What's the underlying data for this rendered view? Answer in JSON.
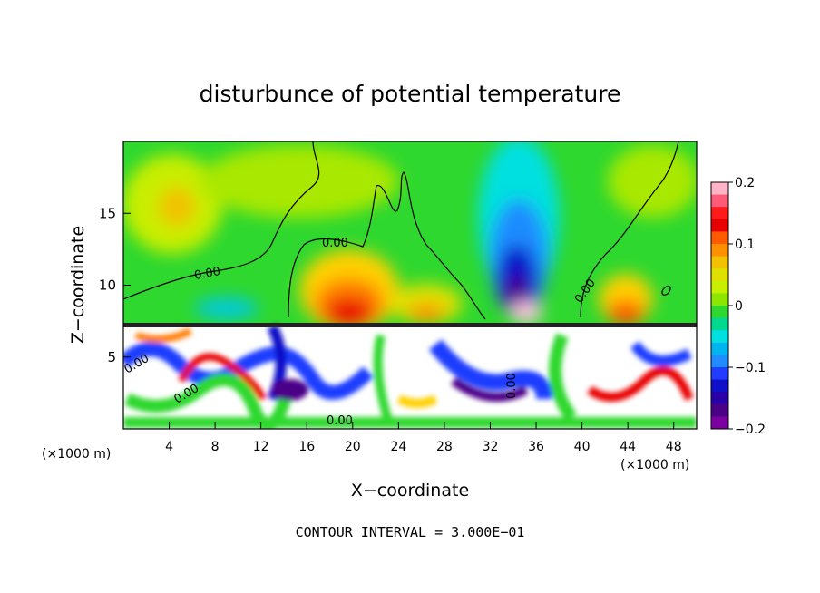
{
  "chart_data": {
    "type": "heatmap",
    "title": "disturbunce of potential temperature",
    "xlabel": "X−coordinate",
    "ylabel": "Z−coordinate",
    "x_unit_left": "(×1000 m)",
    "x_unit_right": "(×1000 m)",
    "xlim": [
      0,
      50
    ],
    "ylim": [
      0,
      20
    ],
    "x_ticks": [
      "4",
      "8",
      "12",
      "16",
      "20",
      "24",
      "28",
      "32",
      "36",
      "40",
      "44",
      "48"
    ],
    "y_ticks": [
      "5",
      "10",
      "15"
    ],
    "colorbar": {
      "range": [
        -0.2,
        0.2
      ],
      "tick_labels": [
        "0.2",
        "0.1",
        "0",
        "−0.1",
        "−0.2"
      ]
    },
    "contour_labels": [
      "0.00",
      "0.00",
      "0.00",
      "0.00",
      "0.00",
      "0.00",
      "0.00"
    ],
    "footer": "CONTOUR INTERVAL = 3.000E−01"
  }
}
